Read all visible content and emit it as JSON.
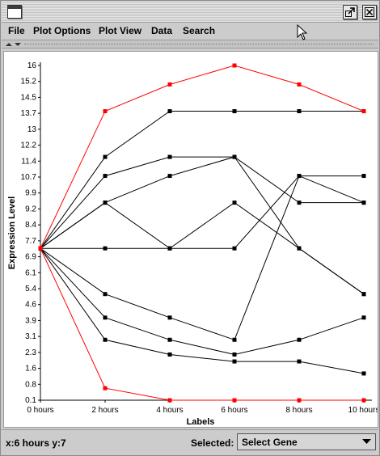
{
  "menubar": {
    "items": [
      "File",
      "Plot Options",
      "Plot View",
      "Data",
      "Search"
    ]
  },
  "status": {
    "coordinates": "x:6 hours y:7",
    "selected_label": "Selected:",
    "selected_value": "Select Gene"
  },
  "icons": {
    "window": "window-icon",
    "maximize": "maximize-icon",
    "close": "close-icon",
    "dropdown": "chevron-down-icon",
    "cursor": "mouse-pointer-icon"
  },
  "colors": {
    "highlight_series": "#ff0000",
    "series": "#000000"
  },
  "chart_data": {
    "type": "line",
    "xlabel": "Labels",
    "ylabel": "Expression Level",
    "x": [
      "0 hours",
      "2 hours",
      "4 hours",
      "6 hours",
      "8 hours",
      "10 hours"
    ],
    "y_ticks": [
      "16",
      "15.2",
      "14.5",
      "13.7",
      "13",
      "12.2",
      "11.4",
      "10.7",
      "9.9",
      "9.2",
      "8.4",
      "7.7",
      "6.9",
      "6.1",
      "5.4",
      "4.6",
      "3.9",
      "3.1",
      "2.3",
      "1.6",
      "0.8",
      "0.1"
    ],
    "scale": "log",
    "grid": false,
    "series": [
      {
        "values": [
          1,
          8,
          12,
          16,
          12,
          8
        ],
        "color": "#ff0000"
      },
      {
        "values": [
          1,
          4,
          8,
          8,
          8,
          8
        ],
        "color": "#000000"
      },
      {
        "values": [
          1,
          3,
          4,
          4,
          1,
          0.5
        ],
        "color": "#000000"
      },
      {
        "values": [
          1,
          2,
          3,
          4,
          2,
          2
        ],
        "color": "#000000"
      },
      {
        "values": [
          1,
          2,
          1,
          2,
          1,
          0.5
        ],
        "color": "#000000"
      },
      {
        "values": [
          1,
          1,
          1,
          1,
          3,
          3
        ],
        "color": "#000000"
      },
      {
        "values": [
          1,
          0.5,
          0.35,
          0.25,
          3,
          2
        ],
        "color": "#000000"
      },
      {
        "values": [
          1,
          0.35,
          0.25,
          0.2,
          0.25,
          0.35
        ],
        "color": "#000000"
      },
      {
        "values": [
          1,
          0.25,
          0.2,
          0.18,
          0.18,
          0.15
        ],
        "color": "#000000"
      },
      {
        "values": [
          1,
          0.12,
          0.1,
          0.1,
          0.1,
          0.1
        ],
        "color": "#ff0000"
      }
    ]
  }
}
